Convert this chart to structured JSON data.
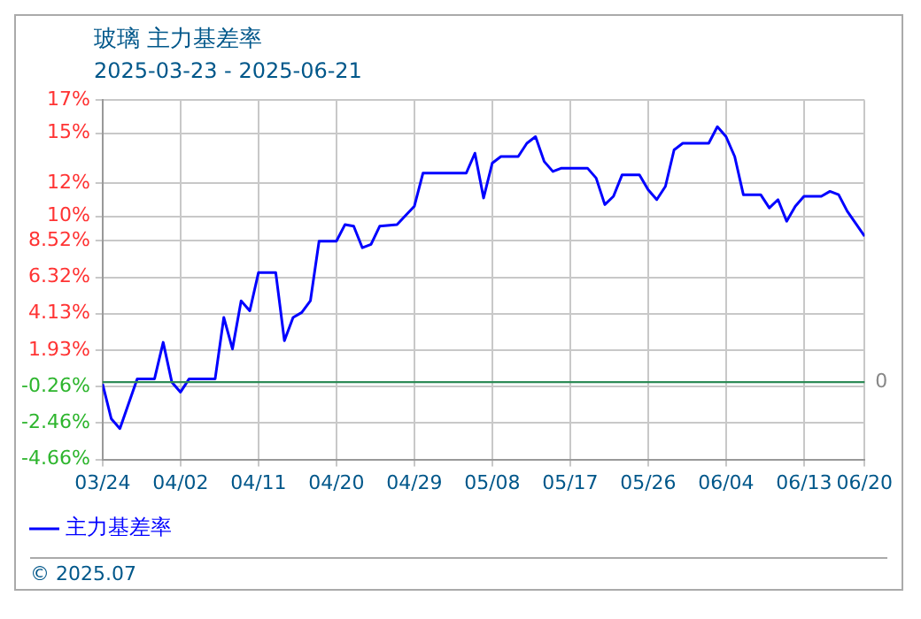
{
  "chart_data": {
    "type": "line",
    "title": "玻璃 主力基差率",
    "subtitle": "2025-03-23 - 2025-06-21",
    "x": [
      "--03-24",
      "--03-25",
      "--03-26",
      "--03-28",
      "--03-30",
      "--03-31",
      "--04-01",
      "--04-02",
      "--04-03",
      "--04-06",
      "--04-07",
      "--04-08",
      "--04-09",
      "--04-10",
      "--04-11",
      "--04-13",
      "--04-14",
      "--04-15",
      "--04-16",
      "--04-17",
      "--04-18",
      "--04-20",
      "--04-21",
      "--04-22",
      "--04-23",
      "--04-24",
      "--04-25",
      "--04-27",
      "--04-29",
      "--04-30",
      "--05-04",
      "--05-05",
      "--05-06",
      "--05-07",
      "--05-08",
      "--05-09",
      "--05-11",
      "--05-12",
      "--05-13",
      "--05-14",
      "--05-15",
      "--05-16",
      "--05-19",
      "--05-20",
      "--05-21",
      "--05-22",
      "--05-23",
      "--05-25",
      "--05-26",
      "--05-27",
      "--05-28",
      "--05-29",
      "--05-30",
      "--06-02",
      "--06-03",
      "--06-04",
      "--06-05",
      "--06-06",
      "--06-08",
      "--06-09",
      "--06-10",
      "--06-11",
      "--06-12",
      "--06-13",
      "--06-15",
      "--06-16",
      "--06-17",
      "--06-18",
      "--06-20"
    ],
    "series": [
      {
        "name": "主力基差率",
        "color": "#0000ff",
        "values": [
          -0.1,
          -2.2,
          -2.8,
          0.2,
          0.2,
          2.4,
          0.0,
          -0.6,
          0.2,
          0.2,
          3.9,
          2.0,
          4.9,
          4.3,
          6.6,
          6.6,
          2.5,
          3.9,
          4.2,
          4.9,
          8.5,
          8.5,
          9.5,
          9.4,
          8.1,
          8.3,
          9.4,
          9.5,
          10.6,
          12.6,
          12.6,
          12.6,
          13.8,
          11.1,
          13.2,
          13.6,
          13.6,
          14.4,
          14.8,
          13.3,
          12.7,
          12.9,
          12.9,
          12.3,
          10.7,
          11.2,
          12.5,
          12.5,
          11.6,
          11.0,
          11.8,
          14.0,
          14.4,
          14.4,
          15.4,
          14.8,
          13.6,
          11.3,
          11.3,
          10.5,
          11.0,
          9.7,
          10.6,
          11.2,
          11.2,
          11.5,
          11.3,
          10.3,
          8.8
        ]
      }
    ],
    "xlim": [
      "--03-24",
      "--06-20"
    ],
    "xticks": [
      {
        "value": "--03-24",
        "label": "03/24"
      },
      {
        "value": "--04-02",
        "label": "04/02"
      },
      {
        "value": "--04-11",
        "label": "04/11"
      },
      {
        "value": "--04-20",
        "label": "04/20"
      },
      {
        "value": "--04-29",
        "label": "04/29"
      },
      {
        "value": "--05-08",
        "label": "05/08"
      },
      {
        "value": "--05-17",
        "label": "05/17"
      },
      {
        "value": "--05-26",
        "label": "05/26"
      },
      {
        "value": "--06-04",
        "label": "06/04"
      },
      {
        "value": "--06-13",
        "label": "06/13"
      },
      {
        "value": "--06-20",
        "label": "06/20"
      }
    ],
    "ylim": [
      -4.66,
      17
    ],
    "yticks": [
      {
        "value": -4.66,
        "label": "-4.66%"
      },
      {
        "value": -2.46,
        "label": "-2.46%"
      },
      {
        "value": -0.26,
        "label": "-0.26%"
      },
      {
        "value": 1.93,
        "label": "1.93%"
      },
      {
        "value": 4.13,
        "label": "4.13%"
      },
      {
        "value": 6.32,
        "label": "6.32%"
      },
      {
        "value": 8.52,
        "label": "8.52%"
      },
      {
        "value": 10,
        "label": "10%"
      },
      {
        "value": 12,
        "label": "12%"
      },
      {
        "value": 15,
        "label": "15%"
      },
      {
        "value": 17,
        "label": "17%"
      }
    ],
    "ref_lines": [
      {
        "axis": "y",
        "value": 0,
        "label": "0",
        "color": "#2e8b57"
      }
    ],
    "grid": true,
    "legend": "bottom left",
    "marker": "none",
    "line_style": "solid",
    "annotations": [
      "© 2025.07"
    ]
  }
}
